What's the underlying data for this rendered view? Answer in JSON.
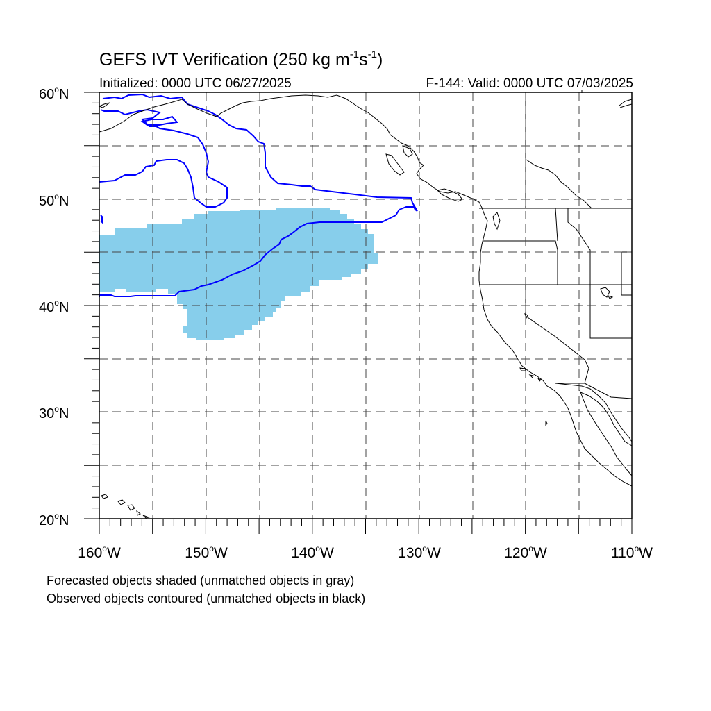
{
  "header": {
    "title_main": "GEFS IVT Verification (250 kg m",
    "title_exp1": "-1",
    "title_mid": "s",
    "title_exp2": "-1",
    "title_end": ")",
    "initialized": "Initialized: 0000 UTC 06/27/2025",
    "valid": "F-144: Valid: 0000 UTC 07/03/2025"
  },
  "axes": {
    "lat_labels": [
      {
        "value": "60",
        "suffix": "N"
      },
      {
        "value": "50",
        "suffix": "N"
      },
      {
        "value": "40",
        "suffix": "N"
      },
      {
        "value": "30",
        "suffix": "N"
      },
      {
        "value": "20",
        "suffix": "N"
      }
    ],
    "lon_labels": [
      {
        "value": "160",
        "suffix": "W"
      },
      {
        "value": "150",
        "suffix": "W"
      },
      {
        "value": "140",
        "suffix": "W"
      },
      {
        "value": "130",
        "suffix": "W"
      },
      {
        "value": "120",
        "suffix": "W"
      },
      {
        "value": "110",
        "suffix": "W"
      }
    ],
    "degree_symbol": "o",
    "lat_range": [
      20,
      60
    ],
    "lon_range": [
      -160,
      -110
    ],
    "grid_spacing_deg": 5,
    "grid_style": "dashed"
  },
  "legend": {
    "line1": "Forecasted objects shaded (unmatched objects in gray)",
    "line2": "Observed objects contoured (unmatched objects in black)"
  },
  "colors": {
    "forecast_fill": "#87ceeb",
    "observed_contour": "#0000ff",
    "coastline": "#000000",
    "grid": "#444444"
  }
}
